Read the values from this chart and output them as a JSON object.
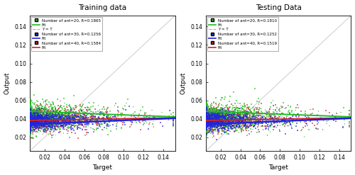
{
  "train_title": "Training data",
  "test_title": "Testing Data",
  "xlabel": "Target",
  "ylabel": "Output",
  "xlim": [
    0.005,
    0.152
  ],
  "ylim": [
    0.005,
    0.152
  ],
  "xticks": [
    0.02,
    0.04,
    0.06,
    0.08,
    0.1,
    0.12,
    0.14
  ],
  "yticks": [
    0.02,
    0.04,
    0.06,
    0.08,
    0.1,
    0.12,
    0.14
  ],
  "train_legend": [
    {
      "label": "Number of ant=20, R=0.1865",
      "color": "#22bb22"
    },
    {
      "label": "Fit",
      "color": "#22bb22"
    },
    {
      "label": "Y = T",
      "color": "#aaaaaa"
    },
    {
      "label": "Number of ant=30, R=0.1256",
      "color": "#2222dd"
    },
    {
      "label": "Fit",
      "color": "#2222dd"
    },
    {
      "label": "Number of ant=40, R=0.1584",
      "color": "#cc2222"
    },
    {
      "label": "Fit",
      "color": "#cc2222"
    }
  ],
  "test_legend": [
    {
      "label": "Number of ant=20, R=0.1810",
      "color": "#22bb22"
    },
    {
      "label": "Fit",
      "color": "#22bb22"
    },
    {
      "label": "Y = T",
      "color": "#aaaaaa"
    },
    {
      "label": "Number of ant=30, R=0.1252",
      "color": "#2222dd"
    },
    {
      "label": "Fit",
      "color": "#2222dd"
    },
    {
      "label": "Number of ant=40, R=0.1519",
      "color": "#cc2222"
    },
    {
      "label": "Fit",
      "color": "#cc2222"
    }
  ],
  "scatter_colors": [
    "#22bb22",
    "#2222dd",
    "#cc2222"
  ],
  "seed": 42,
  "n_points": 1200,
  "bg_color": "#ffffff",
  "diag_color": "#cccccc",
  "diag_lw": 0.7,
  "fit_lw_green": 1.4,
  "fit_lw_blue": 1.8,
  "fit_lw_red": 1.4,
  "scatter_ms": 1.8,
  "scatter_alpha": 0.6,
  "legend_fontsize": 4.0,
  "tick_fontsize": 5.5,
  "label_fontsize": 6.5,
  "title_fontsize": 7.5
}
